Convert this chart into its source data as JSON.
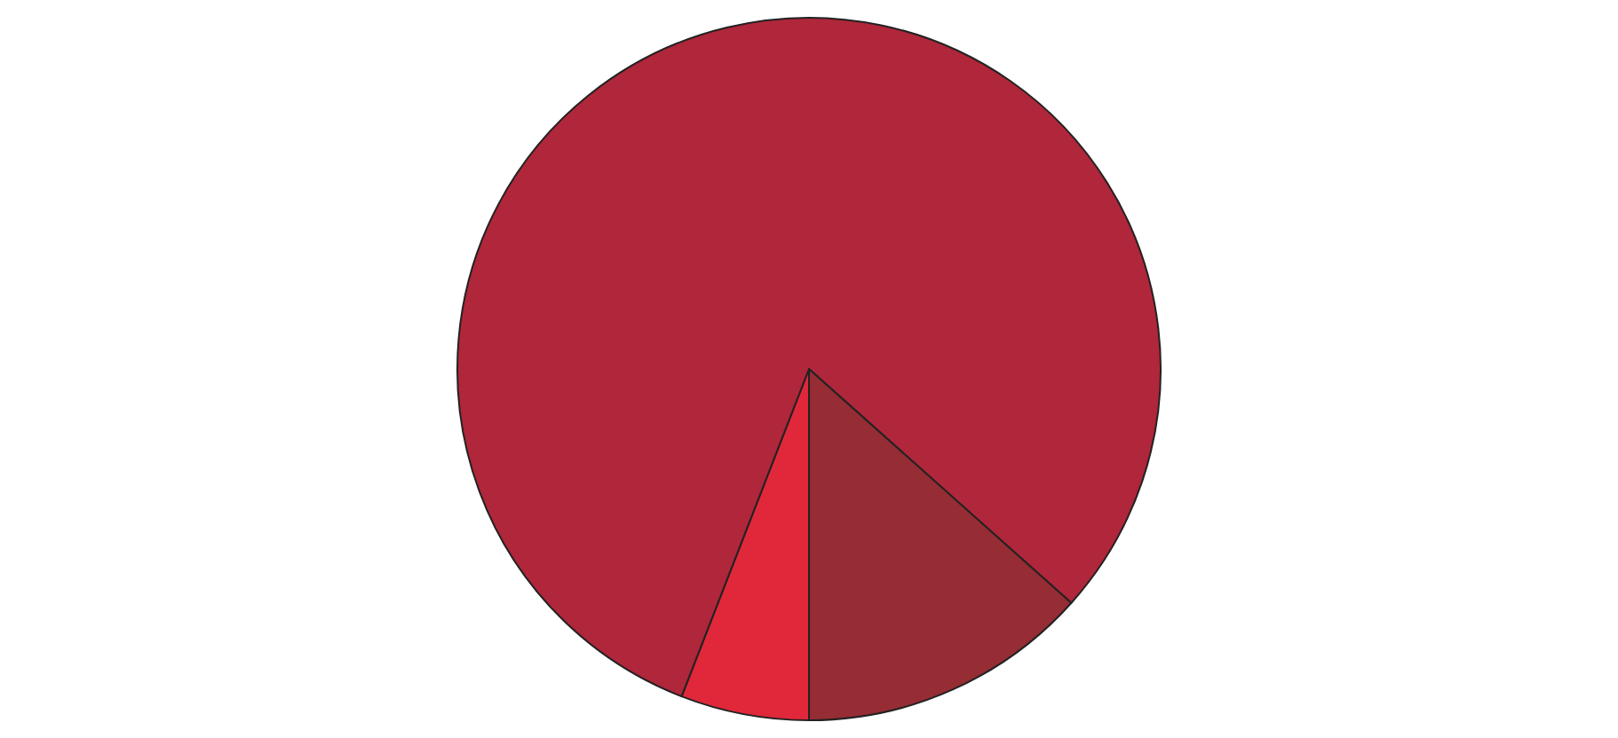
{
  "chart_data": {
    "type": "pie",
    "categories": [
      null,
      null,
      null
    ],
    "values": [
      5.9,
      80.7,
      13.4
    ],
    "colors": [
      "#e0283a",
      "#b0263a",
      "#962c34"
    ],
    "legend": false
  }
}
